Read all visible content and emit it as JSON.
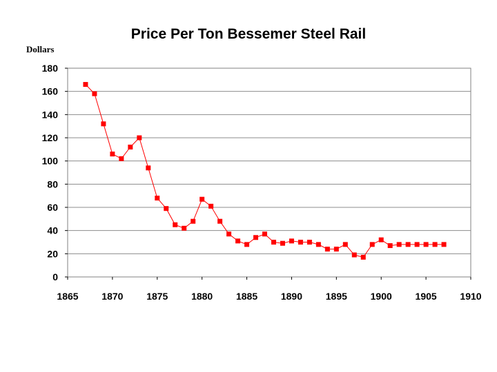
{
  "chart_data": {
    "type": "line",
    "title": "Price Per Ton Bessemer Steel Rail",
    "ylabel": "Dollars",
    "xlabel": "",
    "xlim": [
      1865,
      1910
    ],
    "ylim": [
      0,
      180
    ],
    "xticks": [
      1865,
      1870,
      1875,
      1880,
      1885,
      1890,
      1895,
      1900,
      1905,
      1910
    ],
    "yticks": [
      0,
      20,
      40,
      60,
      80,
      100,
      120,
      140,
      160,
      180
    ],
    "grid": true,
    "legend": "none",
    "series": [
      {
        "color": "#ff0000",
        "x": [
          1867,
          1868,
          1869,
          1870,
          1871,
          1872,
          1873,
          1874,
          1875,
          1876,
          1877,
          1878,
          1879,
          1880,
          1881,
          1882,
          1883,
          1884,
          1885,
          1886,
          1887,
          1888,
          1889,
          1890,
          1891,
          1892,
          1893,
          1894,
          1895,
          1896,
          1897,
          1898,
          1899,
          1900,
          1901,
          1902,
          1903,
          1904,
          1905,
          1906,
          1907
        ],
        "y": [
          166,
          158,
          132,
          106,
          102,
          112,
          120,
          94,
          68,
          59,
          45,
          42,
          48,
          67,
          61,
          48,
          37,
          31,
          28,
          34,
          37,
          30,
          29,
          31,
          30,
          30,
          28,
          24,
          24,
          28,
          19,
          17,
          28,
          32,
          27,
          28,
          28,
          28,
          28,
          28,
          28
        ]
      }
    ]
  }
}
